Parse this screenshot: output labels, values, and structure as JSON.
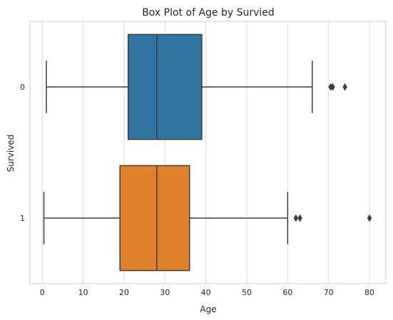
{
  "chart_data": {
    "type": "boxplot",
    "orientation": "horizontal",
    "title": "Box Plot of Age by Survied",
    "xlabel": "Age",
    "ylabel": "Survived",
    "xlim": [
      -3,
      84
    ],
    "xticks": [
      0,
      10,
      20,
      30,
      40,
      50,
      60,
      70,
      80
    ],
    "grid": "vertical",
    "categories": [
      "0",
      "1"
    ],
    "series": [
      {
        "category": "0",
        "color": "#3274a1",
        "whisker_low": 1,
        "q1": 21,
        "median": 28,
        "q3": 39,
        "whisker_high": 66,
        "outliers": [
          70.5,
          71,
          74
        ]
      },
      {
        "category": "1",
        "color": "#e1812c",
        "whisker_low": 0.4,
        "q1": 19,
        "median": 28,
        "q3": 36,
        "whisker_high": 60,
        "outliers": [
          62,
          63,
          80
        ]
      }
    ]
  }
}
